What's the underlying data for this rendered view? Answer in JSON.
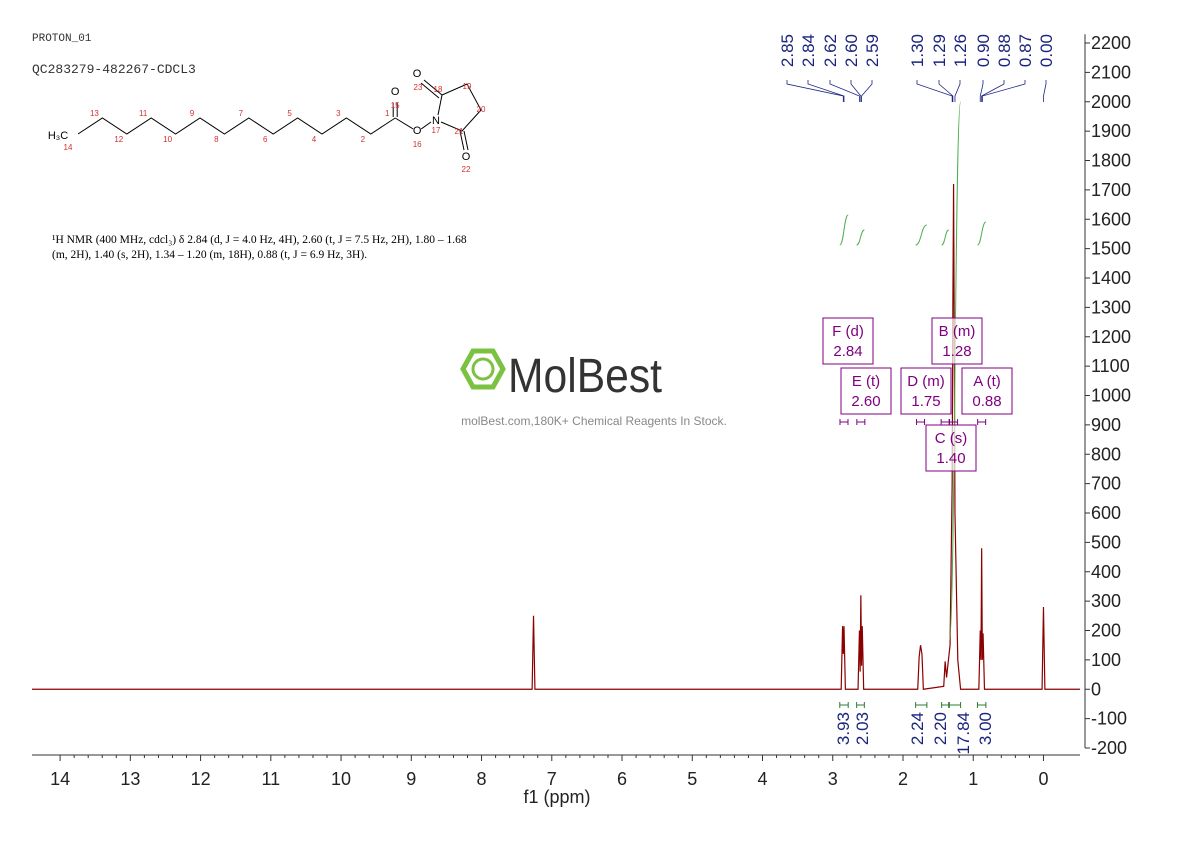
{
  "header": {
    "experiment": "PROTON_01",
    "sample": "QC283279-482267-CDCL3"
  },
  "nmr_text": [
    "¹H NMR (400 MHz, cdcl₃) δ 2.84 (d, J = 4.0 Hz, 4H), 2.60 (t, J = 7.5 Hz, 2H), 1.80 – 1.68",
    "(m, 2H), 1.40 (s, 2H), 1.34 – 1.20 (m, 18H), 0.88 (t, J = 6.9 Hz, 3H)."
  ],
  "watermark": {
    "brand": "MolBest",
    "tagline": "molBest.com,180K+ Chemical Reagents In Stock."
  },
  "structure": {
    "atom_symbols": [
      "H₃C",
      "O",
      "O",
      "N",
      "O",
      "O"
    ],
    "atom_numbers": [
      14,
      13,
      12,
      11,
      10,
      9,
      8,
      7,
      6,
      5,
      4,
      3,
      2,
      1,
      15,
      16,
      17,
      18,
      19,
      20,
      21,
      22,
      23
    ]
  },
  "chart_data": {
    "type": "line",
    "xlabel": "f1 (ppm)",
    "color": "#8b0000",
    "xlim": [
      14.4,
      -0.52
    ],
    "ylim": [
      -200,
      2230
    ],
    "xticks": [
      14,
      13,
      12,
      11,
      10,
      9,
      8,
      7,
      6,
      5,
      4,
      3,
      2,
      1,
      0
    ],
    "yticks": [
      -200,
      -100,
      0,
      100,
      200,
      300,
      400,
      500,
      600,
      700,
      800,
      900,
      1000,
      1100,
      1200,
      1300,
      1400,
      1500,
      1600,
      1700,
      1800,
      1900,
      2000,
      2100,
      2200
    ],
    "x": [
      14.4,
      7.28,
      7.26,
      7.24,
      2.88,
      2.86,
      2.85,
      2.84,
      2.82,
      2.64,
      2.62,
      2.61,
      2.6,
      2.59,
      2.58,
      2.56,
      1.79,
      1.77,
      1.75,
      1.73,
      1.71,
      1.42,
      1.4,
      1.38,
      1.33,
      1.3,
      1.29,
      1.28,
      1.27,
      1.26,
      1.22,
      1.18,
      0.92,
      0.9,
      0.89,
      0.88,
      0.87,
      0.86,
      0.84,
      0.02,
      0,
      -0.02,
      -0.52
    ],
    "values": [
      0,
      0,
      250,
      0,
      0,
      215,
      120,
      215,
      0,
      0,
      200,
      60,
      320,
      80,
      215,
      0,
      0,
      110,
      150,
      120,
      0,
      10,
      95,
      40,
      150,
      700,
      1300,
      1720,
      1200,
      600,
      100,
      0,
      0,
      200,
      100,
      480,
      100,
      190,
      0,
      0,
      280,
      0,
      0
    ],
    "peak_labels": [
      2.85,
      2.84,
      2.62,
      {
        "value": 2.6,
        "label": "2.60"
      },
      2.59,
      {
        "value": 1.3,
        "label": "1.30"
      },
      1.29,
      1.26,
      {
        "value": 0.9,
        "label": "0.90"
      },
      0.88,
      0.87,
      {
        "value": 0,
        "label": "0.00"
      }
    ],
    "integrals": [
      {
        "range": [
          2.9,
          2.78
        ],
        "value": 3.93
      },
      {
        "range": [
          2.66,
          2.55
        ],
        "value": 2.03
      },
      {
        "range": [
          1.82,
          1.66
        ],
        "value": 2.24
      },
      {
        "range": [
          1.45,
          1.35
        ],
        "value": {
          "value": 2.2,
          "label": "2.20"
        }
      },
      {
        "range": [
          1.34,
          1.18
        ],
        "value": 17.84
      },
      {
        "range": [
          0.94,
          0.82
        ],
        "value": {
          "value": 3,
          "label": "3.00"
        }
      }
    ],
    "multiplets": [
      {
        "label": "F (d)",
        "shift": 2.84
      },
      {
        "label": "E (t)",
        "shift": {
          "value": 2.6,
          "label": "2.60"
        }
      },
      {
        "label": "D (m)",
        "shift": 1.75
      },
      {
        "label": "B (m)",
        "shift": 1.28
      },
      {
        "label": "A (t)",
        "shift": 0.88
      },
      {
        "label": "C (s)",
        "shift": {
          "value": 1.4,
          "label": "1.40"
        }
      }
    ]
  }
}
